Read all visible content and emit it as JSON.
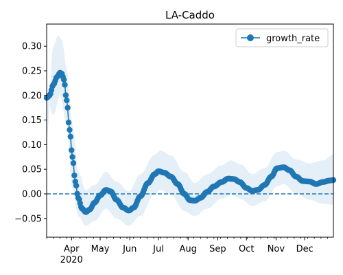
{
  "chart_data": {
    "type": "line",
    "title": "LA-Caddo",
    "xlabel": "",
    "ylabel": "",
    "x_start": "2020-03-06",
    "x_end": "2020-12-31",
    "ylim": [
      -0.088,
      0.345
    ],
    "yticks": [
      -0.05,
      0.0,
      0.05,
      0.1,
      0.15,
      0.2,
      0.25,
      0.3
    ],
    "ytick_labels": [
      "−0.05",
      "0.00",
      "0.05",
      "0.10",
      "0.15",
      "0.20",
      "0.25",
      "0.30"
    ],
    "xticks_major": [
      {
        "date": "2020-04-01",
        "label": "Apr",
        "sublabel": "2020"
      },
      {
        "date": "2020-05-01",
        "label": "May"
      },
      {
        "date": "2020-06-01",
        "label": "Jun"
      },
      {
        "date": "2020-07-01",
        "label": "Jul"
      },
      {
        "date": "2020-08-01",
        "label": "Aug"
      },
      {
        "date": "2020-09-01",
        "label": "Sep"
      },
      {
        "date": "2020-10-01",
        "label": "Oct"
      },
      {
        "date": "2020-11-01",
        "label": "Nov"
      },
      {
        "date": "2020-12-01",
        "label": "Dec"
      }
    ],
    "reference_line": {
      "y": 0.0,
      "style": "dashed"
    },
    "legend": {
      "position": "top-right",
      "entries": [
        "growth_rate"
      ]
    },
    "colors": {
      "line": "#1f77b4",
      "band": "#c6dbef"
    },
    "series": [
      {
        "name": "growth_rate",
        "anchors": [
          [
            "2020-03-06",
            0.195
          ],
          [
            "2020-03-09",
            0.2
          ],
          [
            "2020-03-13",
            0.222
          ],
          [
            "2020-03-17",
            0.238
          ],
          [
            "2020-03-20",
            0.246
          ],
          [
            "2020-03-22",
            0.244
          ],
          [
            "2020-03-24",
            0.232
          ],
          [
            "2020-03-27",
            0.19
          ],
          [
            "2020-03-30",
            0.13
          ],
          [
            "2020-04-02",
            0.075
          ],
          [
            "2020-04-05",
            0.025
          ],
          [
            "2020-04-08",
            -0.008
          ],
          [
            "2020-04-12",
            -0.03
          ],
          [
            "2020-04-16",
            -0.037
          ],
          [
            "2020-04-20",
            -0.032
          ],
          [
            "2020-04-25",
            -0.018
          ],
          [
            "2020-05-01",
            -0.003
          ],
          [
            "2020-05-07",
            0.008
          ],
          [
            "2020-05-12",
            0.005
          ],
          [
            "2020-05-18",
            -0.012
          ],
          [
            "2020-05-25",
            -0.028
          ],
          [
            "2020-05-31",
            -0.034
          ],
          [
            "2020-06-05",
            -0.028
          ],
          [
            "2020-06-12",
            -0.005
          ],
          [
            "2020-06-20",
            0.022
          ],
          [
            "2020-06-27",
            0.04
          ],
          [
            "2020-07-01",
            0.046
          ],
          [
            "2020-07-07",
            0.043
          ],
          [
            "2020-07-14",
            0.035
          ],
          [
            "2020-07-21",
            0.02
          ],
          [
            "2020-07-28",
            0.0
          ],
          [
            "2020-08-03",
            -0.013
          ],
          [
            "2020-08-08",
            -0.014
          ],
          [
            "2020-08-14",
            -0.008
          ],
          [
            "2020-08-21",
            0.004
          ],
          [
            "2020-08-28",
            0.015
          ],
          [
            "2020-09-05",
            0.024
          ],
          [
            "2020-09-12",
            0.031
          ],
          [
            "2020-09-18",
            0.03
          ],
          [
            "2020-09-24",
            0.024
          ],
          [
            "2020-10-01",
            0.012
          ],
          [
            "2020-10-07",
            0.006
          ],
          [
            "2020-10-13",
            0.008
          ],
          [
            "2020-10-20",
            0.018
          ],
          [
            "2020-10-27",
            0.035
          ],
          [
            "2020-11-02",
            0.052
          ],
          [
            "2020-11-09",
            0.054
          ],
          [
            "2020-11-15",
            0.048
          ],
          [
            "2020-11-22",
            0.035
          ],
          [
            "2020-11-29",
            0.026
          ],
          [
            "2020-12-06",
            0.025
          ],
          [
            "2020-12-13",
            0.02
          ],
          [
            "2020-12-20",
            0.024
          ],
          [
            "2020-12-27",
            0.027
          ],
          [
            "2020-12-31",
            0.028
          ]
        ],
        "band_upper": [
          [
            "2020-03-06",
            0.11
          ],
          [
            "2020-03-13",
            0.3
          ],
          [
            "2020-03-18",
            0.322
          ],
          [
            "2020-03-22",
            0.312
          ],
          [
            "2020-03-27",
            0.255
          ],
          [
            "2020-04-02",
            0.14
          ],
          [
            "2020-04-08",
            0.045
          ],
          [
            "2020-04-16",
            0.008
          ],
          [
            "2020-04-25",
            0.018
          ],
          [
            "2020-05-07",
            0.045
          ],
          [
            "2020-05-18",
            0.025
          ],
          [
            "2020-05-31",
            0.005
          ],
          [
            "2020-06-12",
            0.04
          ],
          [
            "2020-06-27",
            0.08
          ],
          [
            "2020-07-03",
            0.088
          ],
          [
            "2020-07-14",
            0.078
          ],
          [
            "2020-07-28",
            0.045
          ],
          [
            "2020-08-08",
            0.022
          ],
          [
            "2020-08-21",
            0.04
          ],
          [
            "2020-09-05",
            0.058
          ],
          [
            "2020-09-15",
            0.068
          ],
          [
            "2020-09-25",
            0.06
          ],
          [
            "2020-10-07",
            0.04
          ],
          [
            "2020-10-20",
            0.052
          ],
          [
            "2020-11-02",
            0.085
          ],
          [
            "2020-11-09",
            0.088
          ],
          [
            "2020-11-22",
            0.07
          ],
          [
            "2020-12-06",
            0.062
          ],
          [
            "2020-12-20",
            0.068
          ],
          [
            "2020-12-31",
            0.08
          ]
        ],
        "band_lower": [
          [
            "2020-03-06",
            0.195
          ],
          [
            "2020-03-13",
            0.16
          ],
          [
            "2020-03-20",
            0.2
          ],
          [
            "2020-03-27",
            0.14
          ],
          [
            "2020-04-02",
            0.01
          ],
          [
            "2020-04-08",
            -0.045
          ],
          [
            "2020-04-16",
            -0.065
          ],
          [
            "2020-04-25",
            -0.055
          ],
          [
            "2020-05-07",
            -0.03
          ],
          [
            "2020-05-18",
            -0.05
          ],
          [
            "2020-05-31",
            -0.065
          ],
          [
            "2020-06-12",
            -0.045
          ],
          [
            "2020-06-27",
            0.0
          ],
          [
            "2020-07-03",
            0.008
          ],
          [
            "2020-07-14",
            -0.002
          ],
          [
            "2020-07-28",
            -0.035
          ],
          [
            "2020-08-08",
            -0.045
          ],
          [
            "2020-08-21",
            -0.03
          ],
          [
            "2020-09-05",
            -0.01
          ],
          [
            "2020-09-15",
            -0.002
          ],
          [
            "2020-09-25",
            -0.01
          ],
          [
            "2020-10-07",
            -0.025
          ],
          [
            "2020-10-20",
            -0.015
          ],
          [
            "2020-11-02",
            0.015
          ],
          [
            "2020-11-09",
            0.02
          ],
          [
            "2020-11-22",
            0.0
          ],
          [
            "2020-12-06",
            -0.012
          ],
          [
            "2020-12-20",
            -0.02
          ],
          [
            "2020-12-31",
            -0.022
          ]
        ]
      }
    ]
  }
}
